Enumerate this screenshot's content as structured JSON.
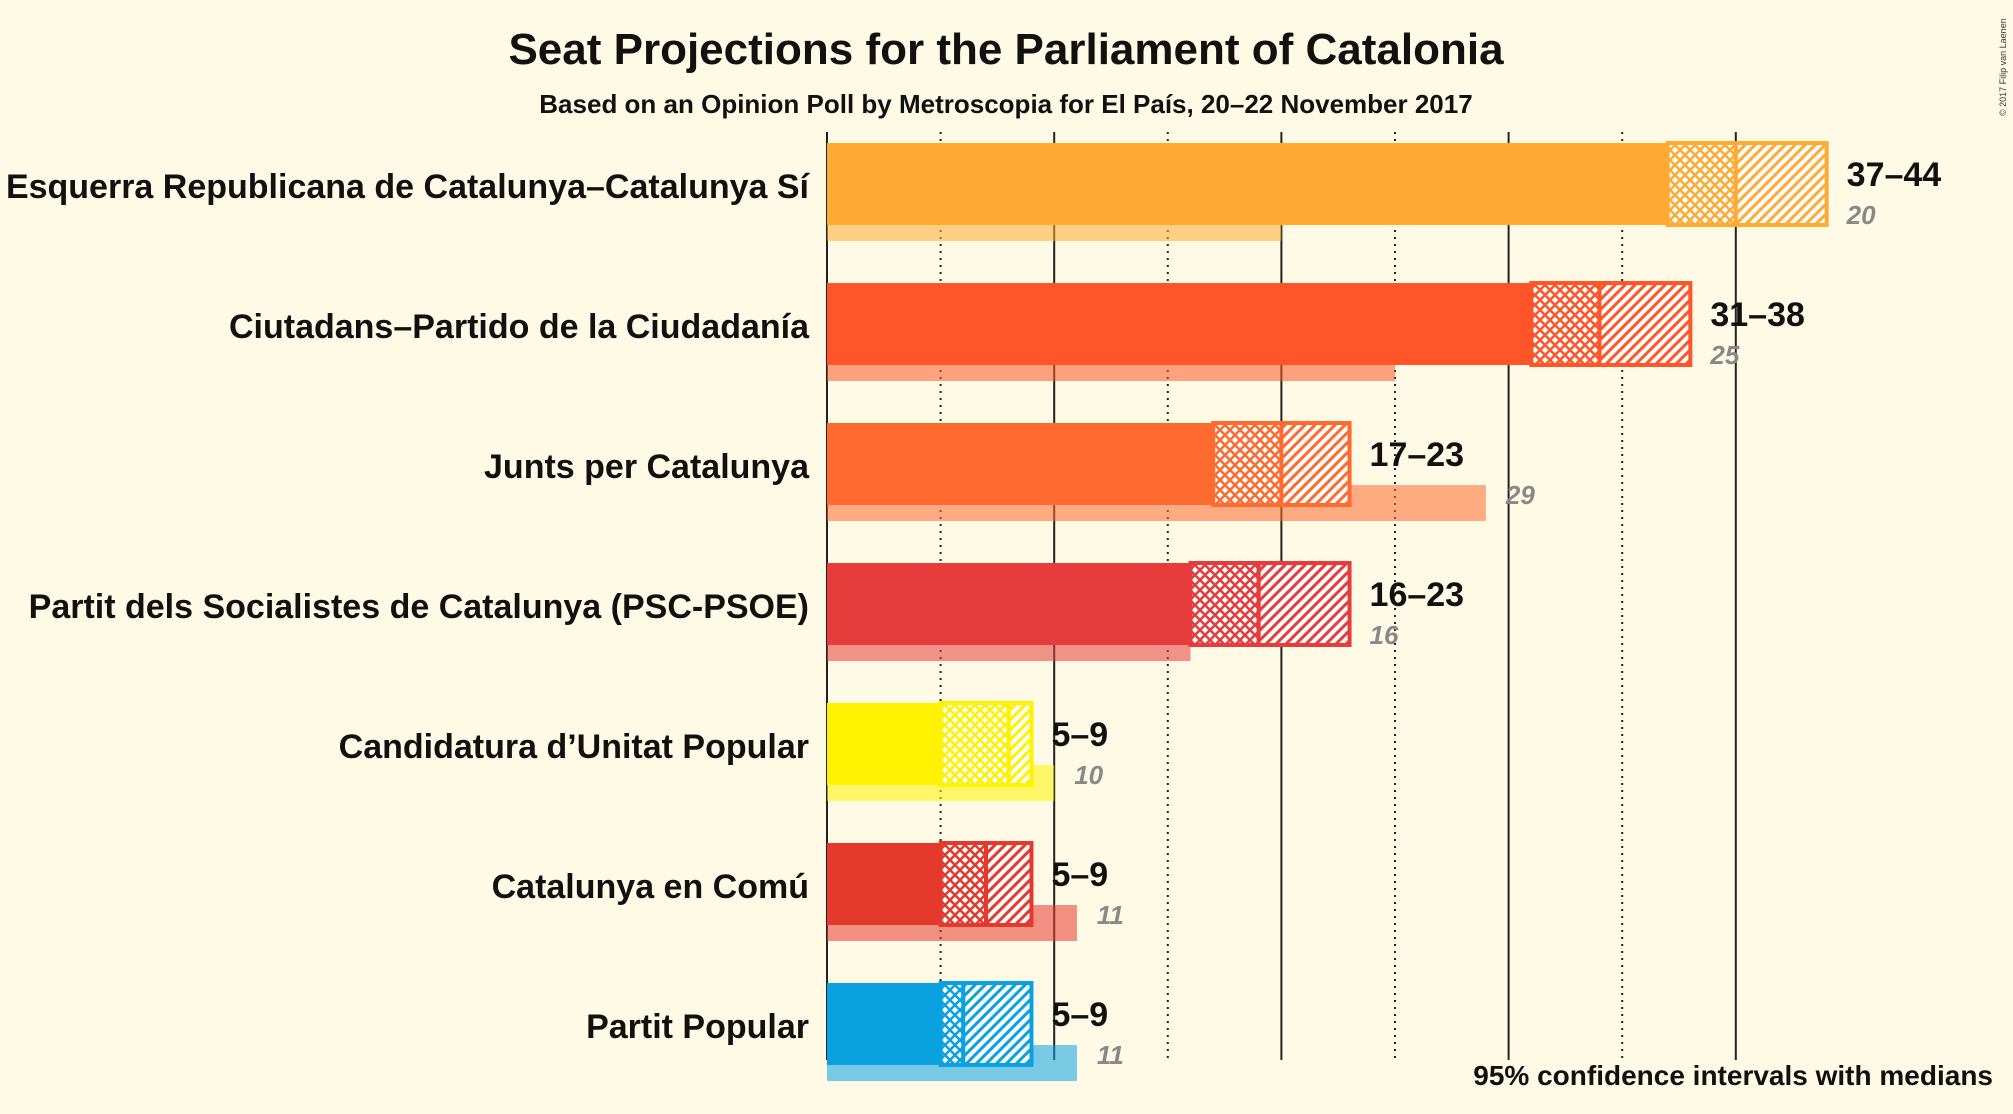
{
  "chart_data": {
    "type": "bar",
    "title": "Seat Projections for the Parliament of Catalonia",
    "subtitle": "Based on an Opinion Poll by Metroscopia for El País, 20–22 November 2017",
    "note": "95% confidence intervals with medians",
    "copyright": "© 2017 Filip van Laenen",
    "xlim": [
      0,
      44
    ],
    "gridlines_solid": [
      0,
      10,
      20,
      30,
      40
    ],
    "gridlines_dotted": [
      5,
      15,
      25,
      35
    ],
    "series": [
      {
        "name": "Esquerra Republicana de Catalunya–Catalunya Sí",
        "color": "#ffab33",
        "low": 37,
        "median": 40,
        "high": 44,
        "range_label": "37–44",
        "previous": 20
      },
      {
        "name": "Ciutadans–Partido de la Ciudadanía",
        "color": "#ff5528",
        "low": 31,
        "median": 34,
        "high": 38,
        "range_label": "31–38",
        "previous": 25
      },
      {
        "name": "Junts per Catalunya",
        "color": "#ff6a2e",
        "low": 17,
        "median": 20,
        "high": 23,
        "range_label": "17–23",
        "previous": 29
      },
      {
        "name": "Partit dels Socialistes de Catalunya (PSC-PSOE)",
        "color": "#e63c3c",
        "low": 16,
        "median": 19,
        "high": 23,
        "range_label": "16–23",
        "previous": 16
      },
      {
        "name": "Candidatura d’Unitat Popular",
        "color": "#fff200",
        "low": 5,
        "median": 8,
        "high": 9,
        "range_label": "5–9",
        "previous": 10
      },
      {
        "name": "Catalunya en Comú",
        "color": "#e5392e",
        "low": 5,
        "median": 7,
        "high": 9,
        "range_label": "5–9",
        "previous": 11
      },
      {
        "name": "Partit Popular",
        "color": "#0aa1e0",
        "low": 5,
        "median": 6,
        "high": 9,
        "range_label": "5–9",
        "previous": 11
      }
    ]
  }
}
